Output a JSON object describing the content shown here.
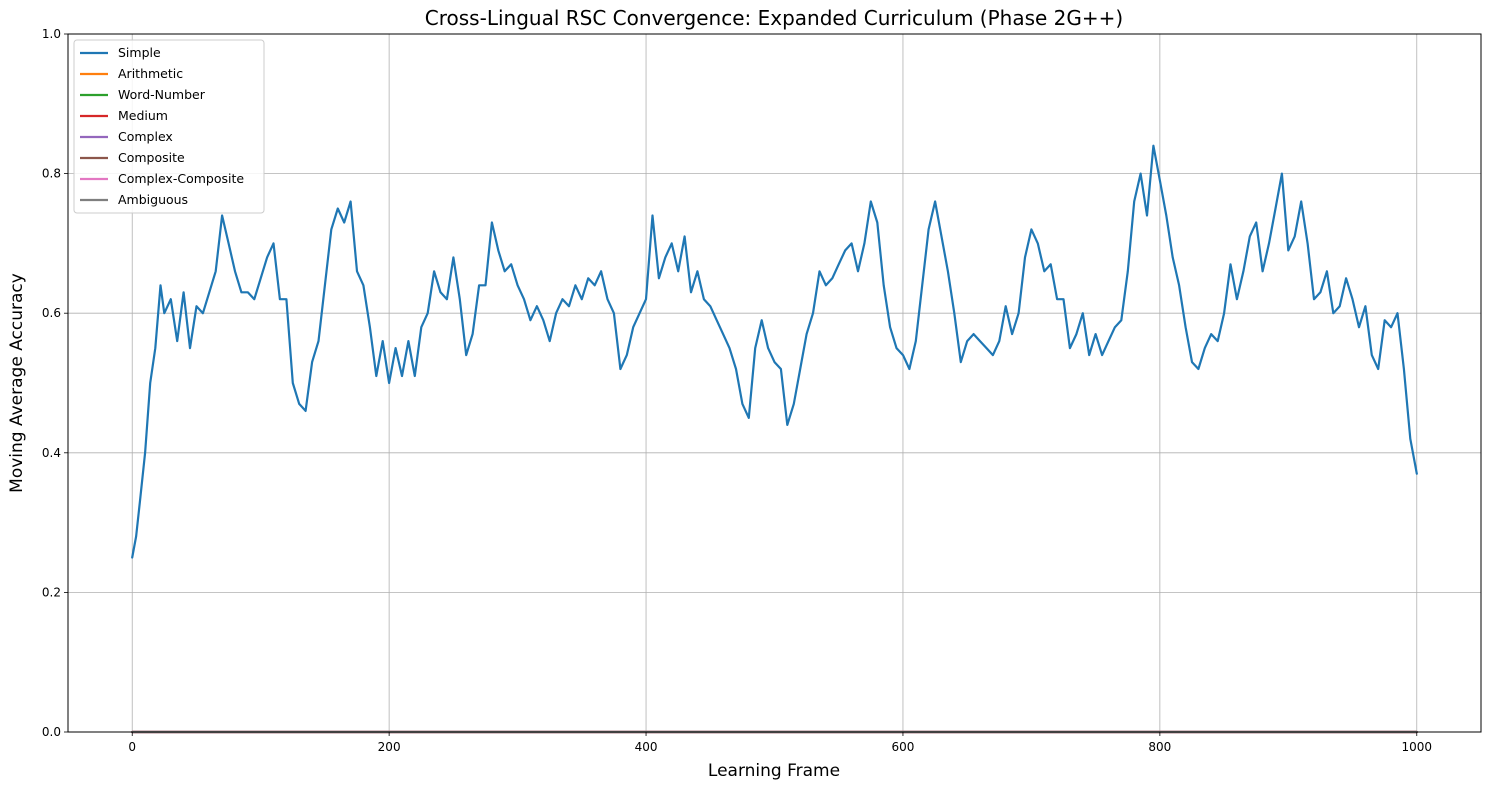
{
  "chart_data": {
    "type": "line",
    "title": "Cross-Lingual RSC Convergence: Expanded Curriculum (Phase 2G++)",
    "xlabel": "Learning Frame",
    "ylabel": "Moving Average Accuracy",
    "xlim": [
      -50,
      1050
    ],
    "ylim": [
      0.0,
      1.0
    ],
    "xticks": [
      0,
      200,
      400,
      600,
      800,
      1000
    ],
    "xtick_labels": [
      "0",
      "200",
      "400",
      "600",
      "800",
      "1000"
    ],
    "yticks": [
      0.0,
      0.2,
      0.4,
      0.6,
      0.8,
      1.0
    ],
    "ytick_labels": [
      "0.0",
      "0.2",
      "0.4",
      "0.6",
      "0.8",
      "1.0"
    ],
    "grid": true,
    "legend_position": "top-left",
    "legend": [
      {
        "label": "Simple",
        "color": "#1f77b4"
      },
      {
        "label": "Arithmetic",
        "color": "#ff7f0e"
      },
      {
        "label": "Word-Number",
        "color": "#2ca02c"
      },
      {
        "label": "Medium",
        "color": "#d62728"
      },
      {
        "label": "Complex",
        "color": "#9467bd"
      },
      {
        "label": "Composite",
        "color": "#8c564b"
      },
      {
        "label": "Complex-Composite",
        "color": "#e377c2"
      },
      {
        "label": "Ambiguous",
        "color": "#7f7f7f"
      }
    ],
    "series": [
      {
        "name": "Simple",
        "color": "#1f77b4",
        "x": [
          0,
          3,
          6,
          10,
          14,
          18,
          22,
          25,
          30,
          35,
          40,
          45,
          50,
          55,
          60,
          65,
          70,
          75,
          80,
          85,
          90,
          95,
          100,
          105,
          110,
          115,
          120,
          125,
          130,
          135,
          140,
          145,
          150,
          155,
          160,
          165,
          170,
          175,
          180,
          185,
          190,
          195,
          200,
          205,
          210,
          215,
          220,
          225,
          230,
          235,
          240,
          245,
          250,
          255,
          260,
          265,
          270,
          275,
          280,
          285,
          290,
          295,
          300,
          305,
          310,
          315,
          320,
          325,
          330,
          335,
          340,
          345,
          350,
          355,
          360,
          365,
          370,
          375,
          380,
          385,
          390,
          395,
          400,
          405,
          410,
          415,
          420,
          425,
          430,
          435,
          440,
          445,
          450,
          455,
          460,
          465,
          470,
          475,
          480,
          485,
          490,
          495,
          500,
          505,
          510,
          515,
          520,
          525,
          530,
          535,
          540,
          545,
          550,
          555,
          560,
          565,
          570,
          575,
          580,
          585,
          590,
          595,
          600,
          605,
          610,
          615,
          620,
          625,
          630,
          635,
          640,
          645,
          650,
          655,
          660,
          665,
          670,
          675,
          680,
          685,
          690,
          695,
          700,
          705,
          710,
          715,
          720,
          725,
          730,
          735,
          740,
          745,
          750,
          755,
          760,
          765,
          770,
          775,
          780,
          785,
          790,
          795,
          800,
          805,
          810,
          815,
          820,
          825,
          830,
          835,
          840,
          845,
          850,
          855,
          860,
          865,
          870,
          875,
          880,
          885,
          890,
          895,
          900,
          905,
          910,
          915,
          920,
          925,
          930,
          935,
          940,
          945,
          950,
          955,
          960,
          965,
          970,
          975,
          980,
          985,
          990,
          995,
          1000
        ],
        "values": [
          0.25,
          0.28,
          0.33,
          0.4,
          0.5,
          0.55,
          0.64,
          0.6,
          0.62,
          0.56,
          0.63,
          0.55,
          0.61,
          0.6,
          0.63,
          0.66,
          0.74,
          0.7,
          0.66,
          0.63,
          0.63,
          0.62,
          0.65,
          0.68,
          0.7,
          0.62,
          0.62,
          0.5,
          0.47,
          0.46,
          0.53,
          0.56,
          0.64,
          0.72,
          0.75,
          0.73,
          0.76,
          0.66,
          0.64,
          0.58,
          0.51,
          0.56,
          0.5,
          0.55,
          0.51,
          0.56,
          0.51,
          0.58,
          0.6,
          0.66,
          0.63,
          0.62,
          0.68,
          0.62,
          0.54,
          0.57,
          0.64,
          0.64,
          0.73,
          0.69,
          0.66,
          0.67,
          0.64,
          0.62,
          0.59,
          0.61,
          0.59,
          0.56,
          0.6,
          0.62,
          0.61,
          0.64,
          0.62,
          0.65,
          0.64,
          0.66,
          0.62,
          0.6,
          0.52,
          0.54,
          0.58,
          0.6,
          0.62,
          0.74,
          0.65,
          0.68,
          0.7,
          0.66,
          0.71,
          0.63,
          0.66,
          0.62,
          0.61,
          0.59,
          0.57,
          0.55,
          0.52,
          0.47,
          0.45,
          0.55,
          0.59,
          0.55,
          0.53,
          0.52,
          0.44,
          0.47,
          0.52,
          0.57,
          0.6,
          0.66,
          0.64,
          0.65,
          0.67,
          0.69,
          0.7,
          0.66,
          0.7,
          0.76,
          0.73,
          0.64,
          0.58,
          0.55,
          0.54,
          0.52,
          0.56,
          0.64,
          0.72,
          0.76,
          0.71,
          0.66,
          0.6,
          0.53,
          0.56,
          0.57,
          0.56,
          0.55,
          0.54,
          0.56,
          0.61,
          0.57,
          0.6,
          0.68,
          0.72,
          0.7,
          0.66,
          0.67,
          0.62,
          0.62,
          0.55,
          0.57,
          0.6,
          0.54,
          0.57,
          0.54,
          0.56,
          0.58,
          0.59,
          0.66,
          0.76,
          0.8,
          0.74,
          0.84,
          0.79,
          0.74,
          0.68,
          0.64,
          0.58,
          0.53,
          0.52,
          0.55,
          0.57,
          0.56,
          0.6,
          0.67,
          0.62,
          0.66,
          0.71,
          0.73,
          0.66,
          0.7,
          0.75,
          0.8,
          0.69,
          0.71,
          0.76,
          0.7,
          0.62,
          0.63,
          0.66,
          0.6,
          0.61,
          0.65,
          0.62,
          0.58,
          0.61,
          0.54,
          0.52,
          0.59,
          0.58,
          0.6,
          0.52,
          0.42,
          0.37
        ]
      },
      {
        "name": "Arithmetic",
        "color": "#ff7f0e",
        "x": [
          0,
          1000
        ],
        "values": [
          0.0,
          0.0
        ]
      },
      {
        "name": "Word-Number",
        "color": "#2ca02c",
        "x": [
          0,
          1000
        ],
        "values": [
          0.0,
          0.0
        ]
      },
      {
        "name": "Medium",
        "color": "#d62728",
        "x": [
          0,
          1000
        ],
        "values": [
          0.0,
          0.0
        ]
      },
      {
        "name": "Complex",
        "color": "#9467bd",
        "x": [
          0,
          1000
        ],
        "values": [
          0.0,
          0.0
        ]
      },
      {
        "name": "Composite",
        "color": "#8c564b",
        "x": [
          0,
          1000
        ],
        "values": [
          0.0,
          0.0
        ]
      },
      {
        "name": "Complex-Composite",
        "color": "#e377c2",
        "x": [
          0,
          1000
        ],
        "values": [
          0.0,
          0.0
        ]
      },
      {
        "name": "Ambiguous",
        "color": "#7f7f7f",
        "x": [
          0,
          1000
        ],
        "values": [
          0.0,
          0.0
        ]
      }
    ]
  }
}
